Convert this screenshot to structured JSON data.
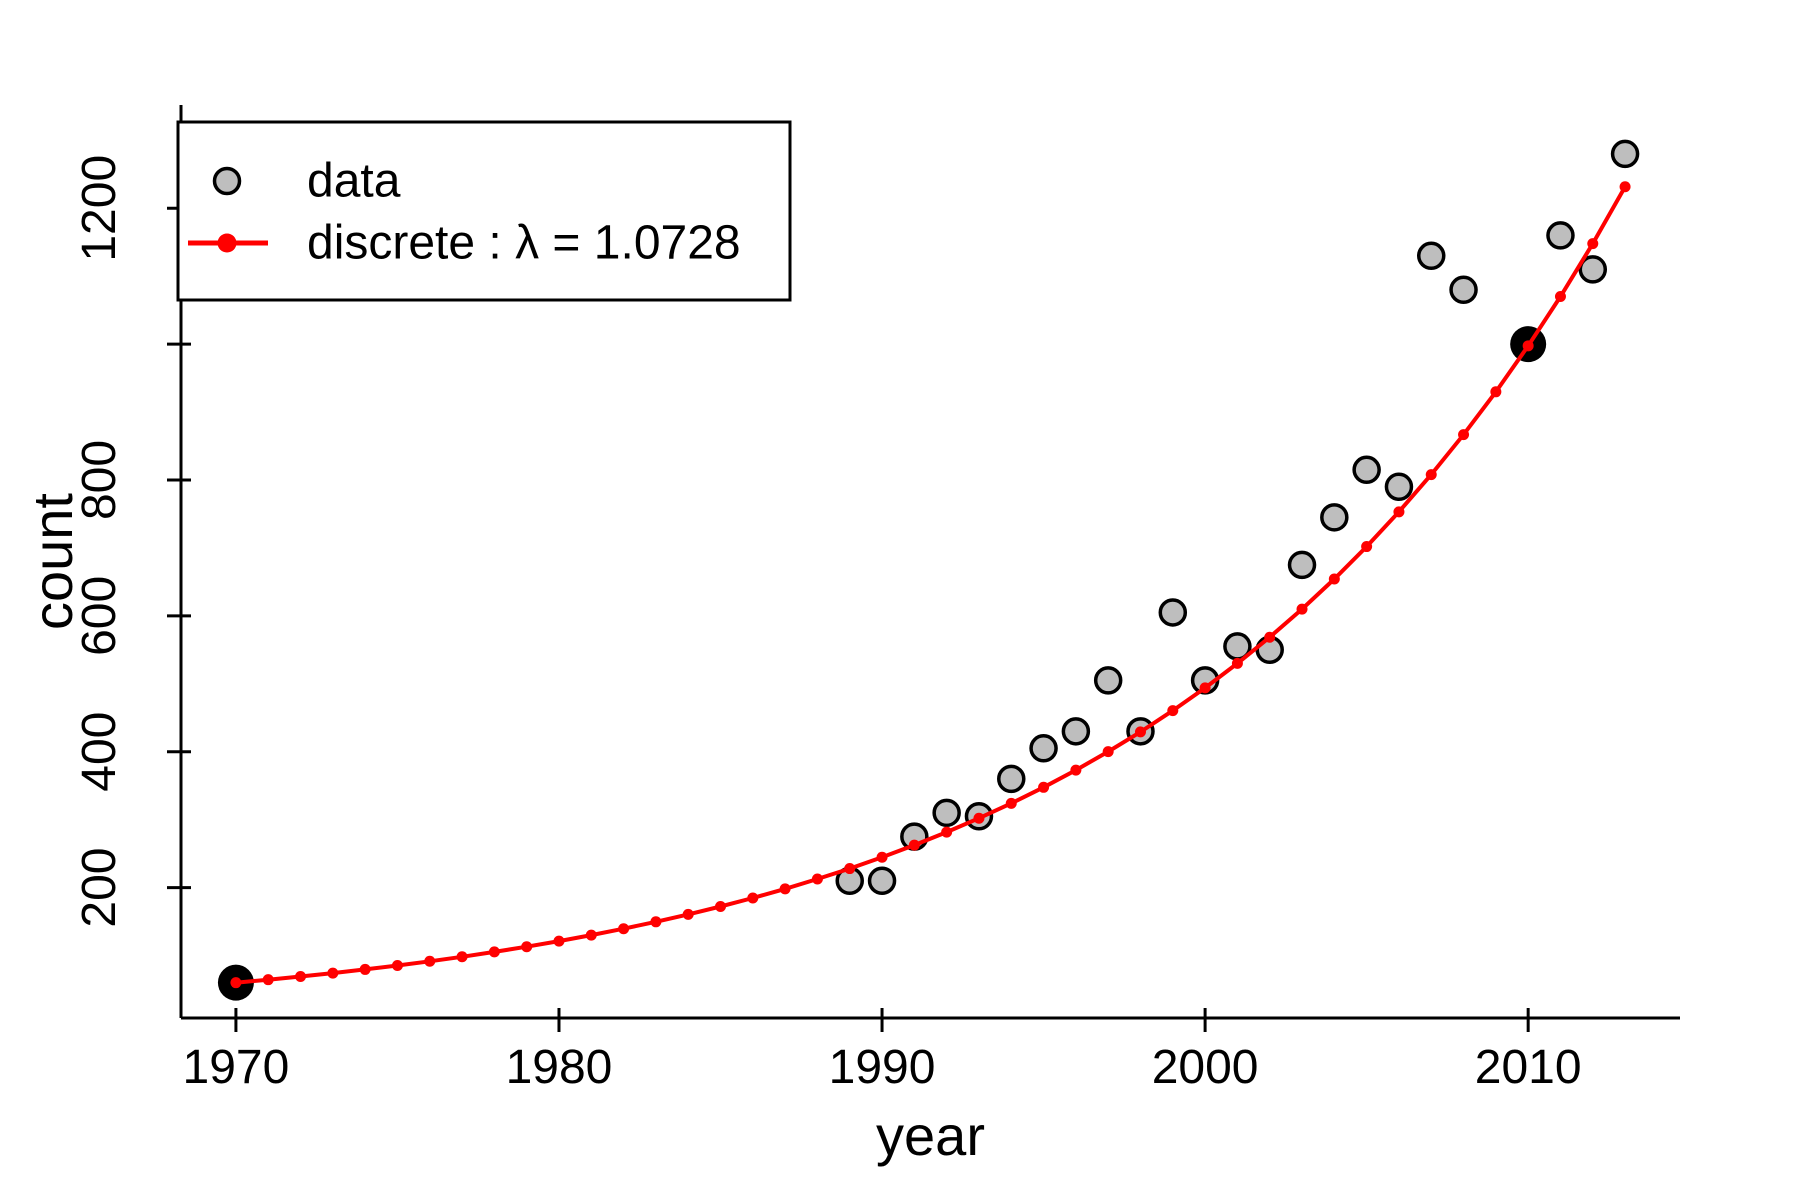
{
  "chart_data": {
    "type": "scatter",
    "title": "",
    "xlabel": "year",
    "ylabel": "count",
    "xlim": [
      1968.3,
      2014.7
    ],
    "ylim": [
      8,
      1352
    ],
    "grid": false,
    "x_ticks": [
      {
        "value": 1970,
        "label": "1970"
      },
      {
        "value": 1980,
        "label": "1980"
      },
      {
        "value": 1990,
        "label": "1990"
      },
      {
        "value": 2000,
        "label": "2000"
      },
      {
        "value": 2010,
        "label": "2010"
      }
    ],
    "y_ticks": [
      {
        "value": 200,
        "label": "200"
      },
      {
        "value": 400,
        "label": "400"
      },
      {
        "value": 600,
        "label": "600"
      },
      {
        "value": 800,
        "label": "800"
      },
      {
        "value": 1000,
        "label": ""
      },
      {
        "value": 1200,
        "label": "1200"
      }
    ],
    "series": [
      {
        "name": "data",
        "type": "scatter",
        "marker": "circle",
        "fill": "#bebebe",
        "stroke": "#000000",
        "points": [
          [
            1989,
            210
          ],
          [
            1990,
            210
          ],
          [
            1991,
            275
          ],
          [
            1992,
            310
          ],
          [
            1993,
            305
          ],
          [
            1994,
            360
          ],
          [
            1995,
            405
          ],
          [
            1996,
            430
          ],
          [
            1997,
            505
          ],
          [
            1998,
            430
          ],
          [
            1999,
            605
          ],
          [
            2000,
            505
          ],
          [
            2001,
            555
          ],
          [
            2002,
            550
          ],
          [
            2003,
            675
          ],
          [
            2004,
            745
          ],
          [
            2005,
            815
          ],
          [
            2006,
            790
          ],
          [
            2007,
            1130
          ],
          [
            2008,
            1080
          ],
          [
            2011,
            1160
          ],
          [
            2012,
            1110
          ],
          [
            2013,
            1280
          ]
        ]
      },
      {
        "name": "data-highlight",
        "type": "scatter",
        "marker": "filled-circle",
        "fill": "#000000",
        "stroke": "#000000",
        "points": [
          [
            1970,
            60
          ],
          [
            2010,
            1000
          ]
        ]
      },
      {
        "name": "discrete-model",
        "type": "line-with-dots",
        "color": "#ff0000",
        "lambda": 1.0728,
        "start_year": 1970,
        "start_value": 60,
        "points": [
          [
            1970,
            60.0
          ],
          [
            1971,
            64.4
          ],
          [
            1972,
            69.1
          ],
          [
            1973,
            74.1
          ],
          [
            1974,
            79.5
          ],
          [
            1975,
            85.3
          ],
          [
            1976,
            91.5
          ],
          [
            1977,
            98.1
          ],
          [
            1978,
            105.3
          ],
          [
            1979,
            112.9
          ],
          [
            1980,
            121.2
          ],
          [
            1981,
            130.0
          ],
          [
            1982,
            139.4
          ],
          [
            1983,
            149.6
          ],
          [
            1984,
            160.5
          ],
          [
            1985,
            172.2
          ],
          [
            1986,
            184.7
          ],
          [
            1987,
            198.1
          ],
          [
            1988,
            212.6
          ],
          [
            1989,
            228.0
          ],
          [
            1990,
            244.6
          ],
          [
            1991,
            262.5
          ],
          [
            1992,
            281.6
          ],
          [
            1993,
            302.1
          ],
          [
            1994,
            324.0
          ],
          [
            1995,
            347.6
          ],
          [
            1996,
            372.9
          ],
          [
            1997,
            400.1
          ],
          [
            1998,
            429.2
          ],
          [
            1999,
            460.5
          ],
          [
            2000,
            494.0
          ],
          [
            2001,
            530.0
          ],
          [
            2002,
            568.5
          ],
          [
            2003,
            609.9
          ],
          [
            2004,
            654.3
          ],
          [
            2005,
            702.0
          ],
          [
            2006,
            753.1
          ],
          [
            2007,
            807.9
          ],
          [
            2008,
            866.7
          ],
          [
            2009,
            929.8
          ],
          [
            2010,
            997.5
          ],
          [
            2011,
            1070.1
          ],
          [
            2012,
            1148.0
          ],
          [
            2013,
            1231.6
          ]
        ]
      }
    ],
    "legend": {
      "position": "top-left",
      "items": [
        {
          "label": "data",
          "marker": "gray-circle"
        },
        {
          "label": "discrete : λ = 1.0728",
          "marker": "red-line-dot"
        }
      ]
    },
    "colors": {
      "data_fill": "#bebebe",
      "data_stroke": "#000000",
      "model_line": "#ff0000",
      "highlight": "#000000",
      "background": "#ffffff"
    }
  }
}
